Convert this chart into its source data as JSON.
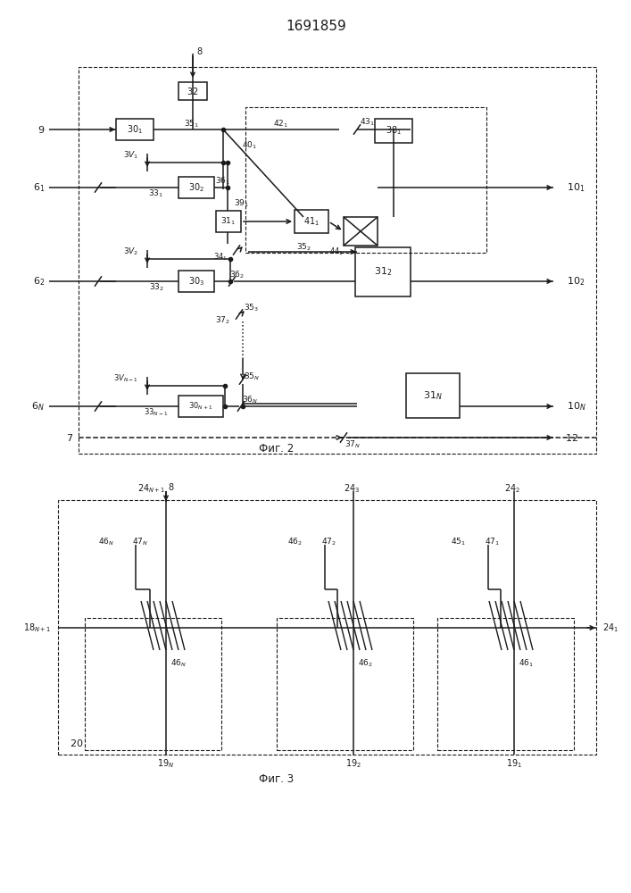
{
  "title": "1691859",
  "fig2_label": "Фиг. 2",
  "fig3_label": "Фиг. 3",
  "bg_color": "#ffffff",
  "line_color": "#1a1a1a",
  "lw": 1.1
}
